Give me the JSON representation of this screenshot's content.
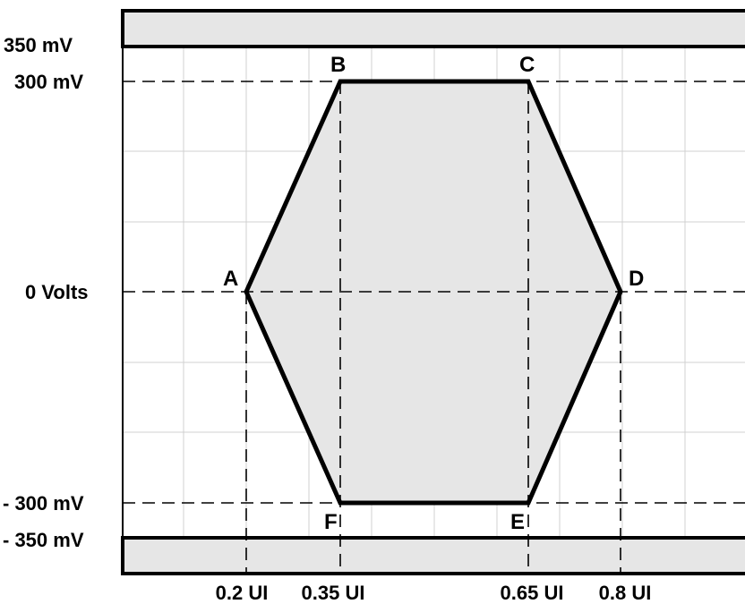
{
  "y_axis_labels": {
    "upper_limit": "350 mV",
    "upper_peak": "300 mV",
    "zero": "0 Volts",
    "lower_peak": "- 300 mV",
    "lower_limit": "- 350 mV"
  },
  "x_axis_labels": {
    "a": "0.2 UI",
    "b": "0.35 UI",
    "c": "0.65 UI",
    "d": "0.8 UI"
  },
  "vertices": {
    "a": "A",
    "b": "B",
    "c": "C",
    "d": "D",
    "e": "E",
    "f": "F"
  },
  "colors": {
    "mask_fill": "#e6e6e6",
    "outline": "#000000",
    "grid": "#d0d0d0",
    "background": "#ffffff"
  }
}
